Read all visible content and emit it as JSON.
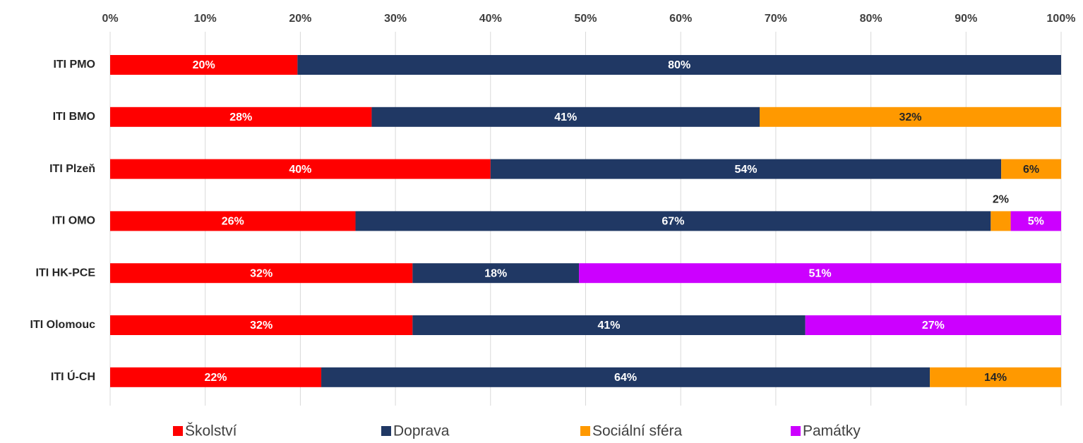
{
  "chart_data": {
    "type": "stacked_barh",
    "categories": [
      "ITI PMO",
      "ITI BMO",
      "ITI Plzeň",
      "ITI OMO",
      "ITI HK-PCE",
      "ITI Olomouc",
      "ITI Ú-CH"
    ],
    "series": [
      {
        "name": "Školství",
        "color": "#ff0000",
        "values": [
          19.7,
          27.5,
          40.0,
          25.8,
          31.8,
          31.8,
          22.2
        ],
        "value_labels": [
          "20%",
          "28%",
          "40%",
          "26%",
          "32%",
          "32%",
          "22%"
        ]
      },
      {
        "name": "Doprava",
        "color": "#203864",
        "values": [
          80.3,
          40.8,
          53.7,
          66.8,
          17.5,
          41.3,
          64.0
        ],
        "value_labels": [
          "80%",
          "41%",
          "54%",
          "67%",
          "18%",
          "41%",
          "64%"
        ]
      },
      {
        "name": "Sociální sféra",
        "color": "#ff9900",
        "values": [
          null,
          31.7,
          6.3,
          2.1,
          null,
          null,
          13.8
        ],
        "value_labels": [
          null,
          "32%",
          "6%",
          "2%",
          null,
          null,
          "14%"
        ]
      },
      {
        "name": "Památky",
        "color": "#cc00ff",
        "values": [
          null,
          null,
          null,
          5.3,
          50.7,
          26.9,
          null
        ],
        "value_labels": [
          null,
          null,
          null,
          "5%",
          "51%",
          "27%",
          null
        ]
      }
    ],
    "xlim": [
      0,
      100
    ],
    "xticks": [
      {
        "value": 0,
        "label": "0%"
      },
      {
        "value": 10,
        "label": "10%"
      },
      {
        "value": 20,
        "label": "20%"
      },
      {
        "value": 30,
        "label": "30%"
      },
      {
        "value": 40,
        "label": "40%"
      },
      {
        "value": 50,
        "label": "50%"
      },
      {
        "value": 60,
        "label": "60%"
      },
      {
        "value": 70,
        "label": "70%"
      },
      {
        "value": 80,
        "label": "80%"
      },
      {
        "value": 90,
        "label": "90%"
      },
      {
        "value": 100,
        "label": "100%"
      }
    ],
    "grid": true,
    "legend": "bottom"
  }
}
